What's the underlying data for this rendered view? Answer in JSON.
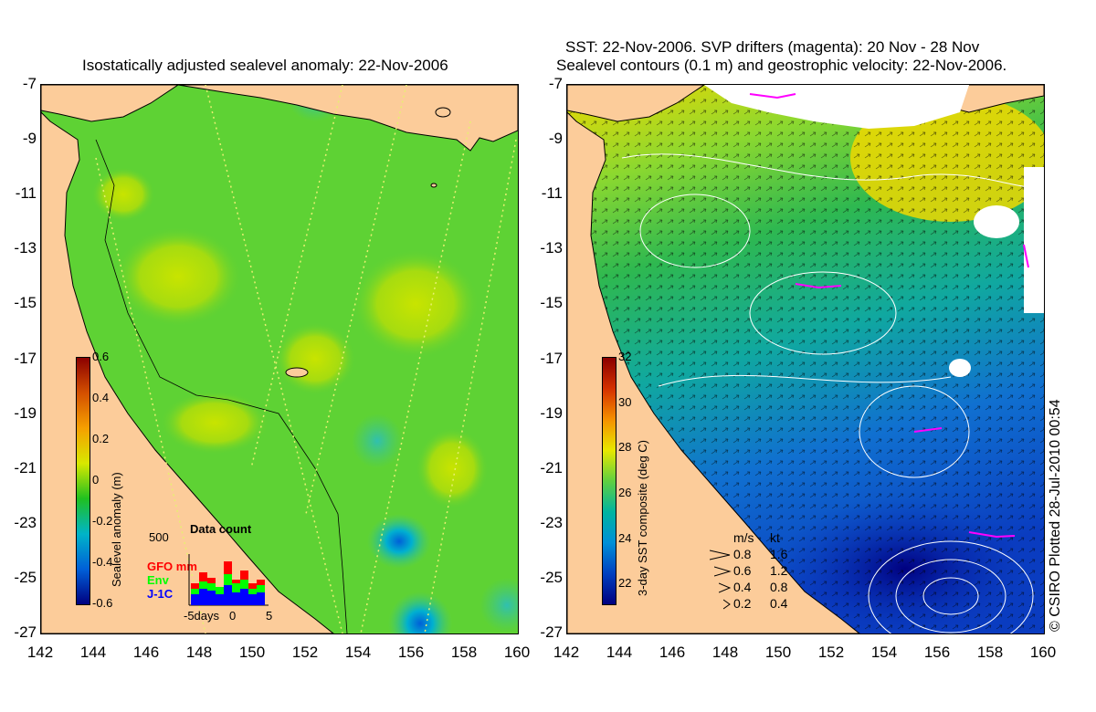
{
  "left_panel": {
    "title": "Isostatically adjusted sealevel anomaly: 22-Nov-2006",
    "colorbar": {
      "label": "Sealevel anomaly (m)",
      "ticks": [
        "0.6",
        "0.4",
        "0.2",
        "0",
        "-0.2",
        "-0.4",
        "-0.6"
      ],
      "colors": [
        "#8b0000",
        "#d45000",
        "#f5a000",
        "#d8e800",
        "#20c020",
        "#00b4c8",
        "#0060d8",
        "#000080"
      ]
    },
    "data_count": {
      "title": "Data count",
      "max_label": "500",
      "series": [
        {
          "name": "GFO mm",
          "color": "#ff0000"
        },
        {
          "name": "Env",
          "color": "#00ff00"
        },
        {
          "name": "J-1C",
          "color": "#0000ff"
        }
      ],
      "x_labels": [
        "-5days",
        "0",
        "5"
      ]
    }
  },
  "right_panel": {
    "title_line1": "SST: 22-Nov-2006. SVP drifters (magenta): 20 Nov - 28 Nov",
    "title_line2": "Sealevel contours (0.1 m) and geostrophic velocity: 22-Nov-2006.",
    "colorbar": {
      "label": "3-day SST composite (deg C)",
      "ticks": [
        "32",
        "30",
        "28",
        "26",
        "24",
        "22"
      ],
      "colors": [
        "#8b0000",
        "#d43000",
        "#f59000",
        "#e8e800",
        "#60d040",
        "#00b4a0",
        "#0090d8",
        "#0040c0",
        "#000080"
      ]
    },
    "velocity_legend": {
      "headers": [
        "m/s",
        "kt"
      ],
      "rows": [
        [
          "0.8",
          "1.6"
        ],
        [
          "0.6",
          "1.2"
        ],
        [
          "0.4",
          "0.8"
        ],
        [
          "0.2",
          "0.4"
        ]
      ]
    },
    "credit": "© CSIRO Plotted 28-Jul-2010 00:54"
  },
  "axes": {
    "y_ticks": [
      "-7",
      "-9",
      "-11",
      "-13",
      "-15",
      "-17",
      "-19",
      "-21",
      "-23",
      "-25",
      "-27"
    ],
    "x_ticks": [
      "142",
      "144",
      "146",
      "148",
      "150",
      "152",
      "154",
      "156",
      "158",
      "160"
    ]
  },
  "colors": {
    "land": "#fccc9a",
    "ocean_mid": "#5ed234",
    "sst_north": "#f0d800",
    "sst_south": "#0a3cc0",
    "drifter": "#ff00ff"
  }
}
